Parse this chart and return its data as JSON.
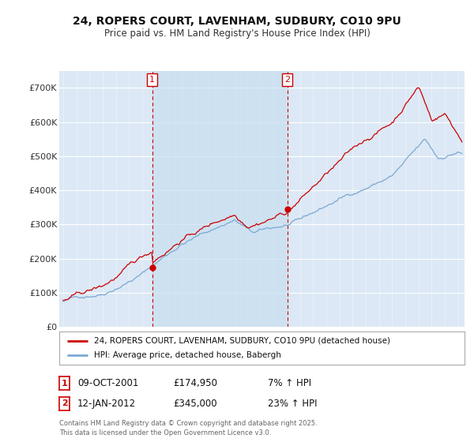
{
  "title": "24, ROPERS COURT, LAVENHAM, SUDBURY, CO10 9PU",
  "subtitle": "Price paid vs. HM Land Registry's House Price Index (HPI)",
  "ylabel_ticks": [
    "£0",
    "£100K",
    "£200K",
    "£300K",
    "£400K",
    "£500K",
    "£600K",
    "£700K"
  ],
  "ytick_values": [
    0,
    100000,
    200000,
    300000,
    400000,
    500000,
    600000,
    700000
  ],
  "ylim": [
    0,
    750000
  ],
  "xlim_start": 1994.7,
  "xlim_end": 2025.5,
  "background_color": "#ffffff",
  "plot_bg_color": "#dce8f5",
  "grid_color": "#ffffff",
  "red_line_color": "#cc0000",
  "blue_line_color": "#7aa8d4",
  "marker1_x": 2001.77,
  "marker1_y": 174950,
  "marker2_x": 2012.04,
  "marker2_y": 345000,
  "shade_x1": 2001.77,
  "shade_x2": 2012.04,
  "shade_color": "#c8dff0",
  "sale1_date": "09-OCT-2001",
  "sale1_price": "£174,950",
  "sale1_hpi": "7% ↑ HPI",
  "sale2_date": "12-JAN-2012",
  "sale2_price": "£345,000",
  "sale2_hpi": "23% ↑ HPI",
  "legend_line1": "24, ROPERS COURT, LAVENHAM, SUDBURY, CO10 9PU (detached house)",
  "legend_line2": "HPI: Average price, detached house, Babergh",
  "footer": "Contains HM Land Registry data © Crown copyright and database right 2025.\nThis data is licensed under the Open Government Licence v3.0.",
  "dashed_line_color": "#cc0000",
  "label_box_color": "#cc0000",
  "seed": 42
}
